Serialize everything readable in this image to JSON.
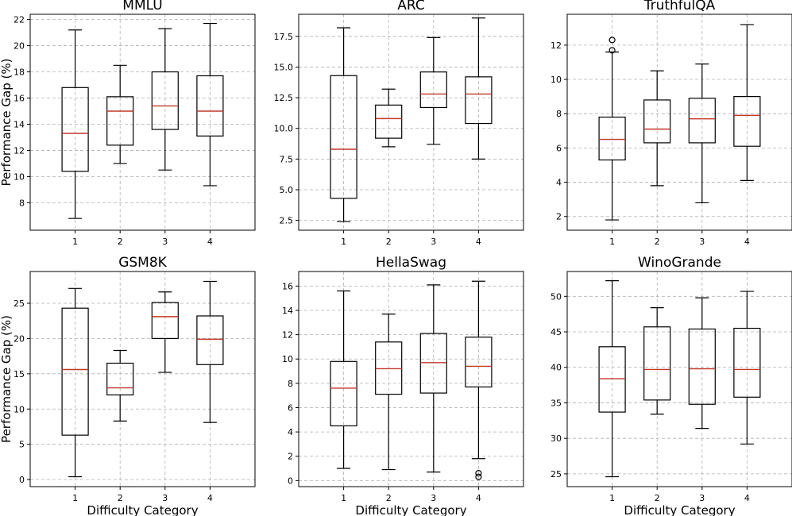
{
  "chart_data": [
    {
      "type": "box",
      "title": "MMLU",
      "xlabel": "",
      "ylabel": "Performance Gap (%)",
      "categories": [
        "1",
        "2",
        "3",
        "4"
      ],
      "ylim": [
        5.9,
        22.4
      ],
      "yticks": [
        8,
        10,
        12,
        14,
        16,
        18,
        20,
        22
      ],
      "grid": true,
      "boxes": [
        {
          "whislo": 6.8,
          "q1": 10.4,
          "med": 13.3,
          "q3": 16.8,
          "whishi": 21.2,
          "fliers": []
        },
        {
          "whislo": 11.0,
          "q1": 12.4,
          "med": 15.0,
          "q3": 16.1,
          "whishi": 18.5,
          "fliers": []
        },
        {
          "whislo": 10.5,
          "q1": 13.6,
          "med": 15.4,
          "q3": 18.0,
          "whishi": 21.3,
          "fliers": []
        },
        {
          "whislo": 9.3,
          "q1": 13.1,
          "med": 15.0,
          "q3": 17.7,
          "whishi": 21.7,
          "fliers": []
        }
      ]
    },
    {
      "type": "box",
      "title": "ARC",
      "xlabel": "",
      "ylabel": "",
      "categories": [
        "1",
        "2",
        "3",
        "4"
      ],
      "ylim": [
        1.7,
        19.3
      ],
      "yticks": [
        2.5,
        5.0,
        7.5,
        10.0,
        12.5,
        15.0,
        17.5
      ],
      "ytick_labels": [
        "2.5",
        "5.0",
        "7.5",
        "10.0",
        "12.5",
        "15.0",
        "17.5"
      ],
      "grid": true,
      "boxes": [
        {
          "whislo": 2.4,
          "q1": 4.3,
          "med": 8.3,
          "q3": 14.3,
          "whishi": 18.2,
          "fliers": []
        },
        {
          "whislo": 8.5,
          "q1": 9.2,
          "med": 10.8,
          "q3": 11.9,
          "whishi": 13.2,
          "fliers": []
        },
        {
          "whislo": 8.7,
          "q1": 11.7,
          "med": 12.8,
          "q3": 14.6,
          "whishi": 17.4,
          "fliers": []
        },
        {
          "whislo": 7.5,
          "q1": 10.4,
          "med": 12.8,
          "q3": 14.2,
          "whishi": 19.0,
          "fliers": []
        }
      ]
    },
    {
      "type": "box",
      "title": "TruthfulQA",
      "xlabel": "",
      "ylabel": "",
      "categories": [
        "1",
        "2",
        "3",
        "4"
      ],
      "ylim": [
        1.2,
        13.8
      ],
      "yticks": [
        2,
        4,
        6,
        8,
        10,
        12
      ],
      "grid": true,
      "boxes": [
        {
          "whislo": 1.8,
          "q1": 5.3,
          "med": 6.5,
          "q3": 7.8,
          "whishi": 11.6,
          "fliers": [
            11.7,
            12.3
          ]
        },
        {
          "whislo": 3.8,
          "q1": 6.3,
          "med": 7.1,
          "q3": 8.8,
          "whishi": 10.5,
          "fliers": []
        },
        {
          "whislo": 2.8,
          "q1": 6.3,
          "med": 7.7,
          "q3": 8.9,
          "whishi": 10.9,
          "fliers": []
        },
        {
          "whislo": 4.1,
          "q1": 6.1,
          "med": 7.9,
          "q3": 9.0,
          "whishi": 13.2,
          "fliers": []
        }
      ]
    },
    {
      "type": "box",
      "title": "GSM8K",
      "xlabel": "Difficulty Category",
      "ylabel": "Performance Gap (%)",
      "categories": [
        "1",
        "2",
        "3",
        "4"
      ],
      "ylim": [
        -1.0,
        29.5
      ],
      "yticks": [
        0,
        5,
        10,
        15,
        20,
        25
      ],
      "grid": true,
      "boxes": [
        {
          "whislo": 0.4,
          "q1": 6.3,
          "med": 15.6,
          "q3": 24.3,
          "whishi": 27.1,
          "fliers": []
        },
        {
          "whislo": 8.3,
          "q1": 12.0,
          "med": 13.0,
          "q3": 16.5,
          "whishi": 18.3,
          "fliers": []
        },
        {
          "whislo": 15.2,
          "q1": 20.0,
          "med": 23.1,
          "q3": 25.1,
          "whishi": 26.6,
          "fliers": []
        },
        {
          "whislo": 8.1,
          "q1": 16.3,
          "med": 19.9,
          "q3": 23.2,
          "whishi": 28.1,
          "fliers": []
        }
      ]
    },
    {
      "type": "box",
      "title": "HellaSwag",
      "xlabel": "Difficulty Category",
      "ylabel": "",
      "categories": [
        "1",
        "2",
        "3",
        "4"
      ],
      "ylim": [
        -0.5,
        17.2
      ],
      "yticks": [
        0,
        2,
        4,
        6,
        8,
        10,
        12,
        14,
        16
      ],
      "grid": true,
      "boxes": [
        {
          "whislo": 1.0,
          "q1": 4.5,
          "med": 7.6,
          "q3": 9.8,
          "whishi": 15.6,
          "fliers": []
        },
        {
          "whislo": 0.9,
          "q1": 7.1,
          "med": 9.2,
          "q3": 11.4,
          "whishi": 13.7,
          "fliers": []
        },
        {
          "whislo": 0.7,
          "q1": 7.2,
          "med": 9.7,
          "q3": 12.1,
          "whishi": 16.1,
          "fliers": []
        },
        {
          "whislo": 1.8,
          "q1": 7.7,
          "med": 9.4,
          "q3": 11.8,
          "whishi": 16.4,
          "fliers": [
            0.3,
            0.6
          ]
        }
      ]
    },
    {
      "type": "box",
      "title": "WinoGrande",
      "xlabel": "Difficulty Category",
      "ylabel": "",
      "categories": [
        "1",
        "2",
        "3",
        "4"
      ],
      "ylim": [
        23.2,
        53.5
      ],
      "yticks": [
        25,
        30,
        35,
        40,
        45,
        50
      ],
      "grid": true,
      "boxes": [
        {
          "whislo": 24.6,
          "q1": 33.7,
          "med": 38.4,
          "q3": 42.9,
          "whishi": 52.2,
          "fliers": []
        },
        {
          "whislo": 33.4,
          "q1": 35.4,
          "med": 39.7,
          "q3": 45.7,
          "whishi": 48.4,
          "fliers": []
        },
        {
          "whislo": 31.4,
          "q1": 34.8,
          "med": 39.8,
          "q3": 45.4,
          "whishi": 49.8,
          "fliers": []
        },
        {
          "whislo": 29.2,
          "q1": 35.8,
          "med": 39.7,
          "q3": 45.5,
          "whishi": 50.7,
          "fliers": []
        }
      ]
    }
  ]
}
